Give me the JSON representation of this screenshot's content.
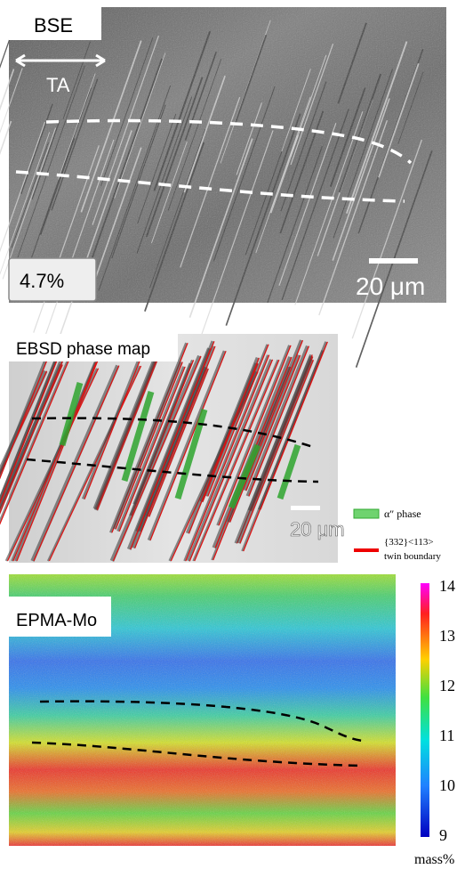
{
  "panels": [
    {
      "label": "BSE",
      "arrow_label": "TA",
      "strain": "4.7%",
      "scale_bar": "20 μm"
    },
    {
      "label": "EBSD phase map",
      "scale_bar": "20 μm",
      "legend": [
        {
          "label": "α″ phase"
        },
        {
          "label": "{332}<113>",
          "label2": "twin boundary"
        }
      ]
    },
    {
      "label": "EPMA-Mo",
      "colorbar": {
        "ticks": [
          14,
          13,
          12,
          11,
          10,
          9
        ],
        "unit": "mass%"
      }
    }
  ]
}
